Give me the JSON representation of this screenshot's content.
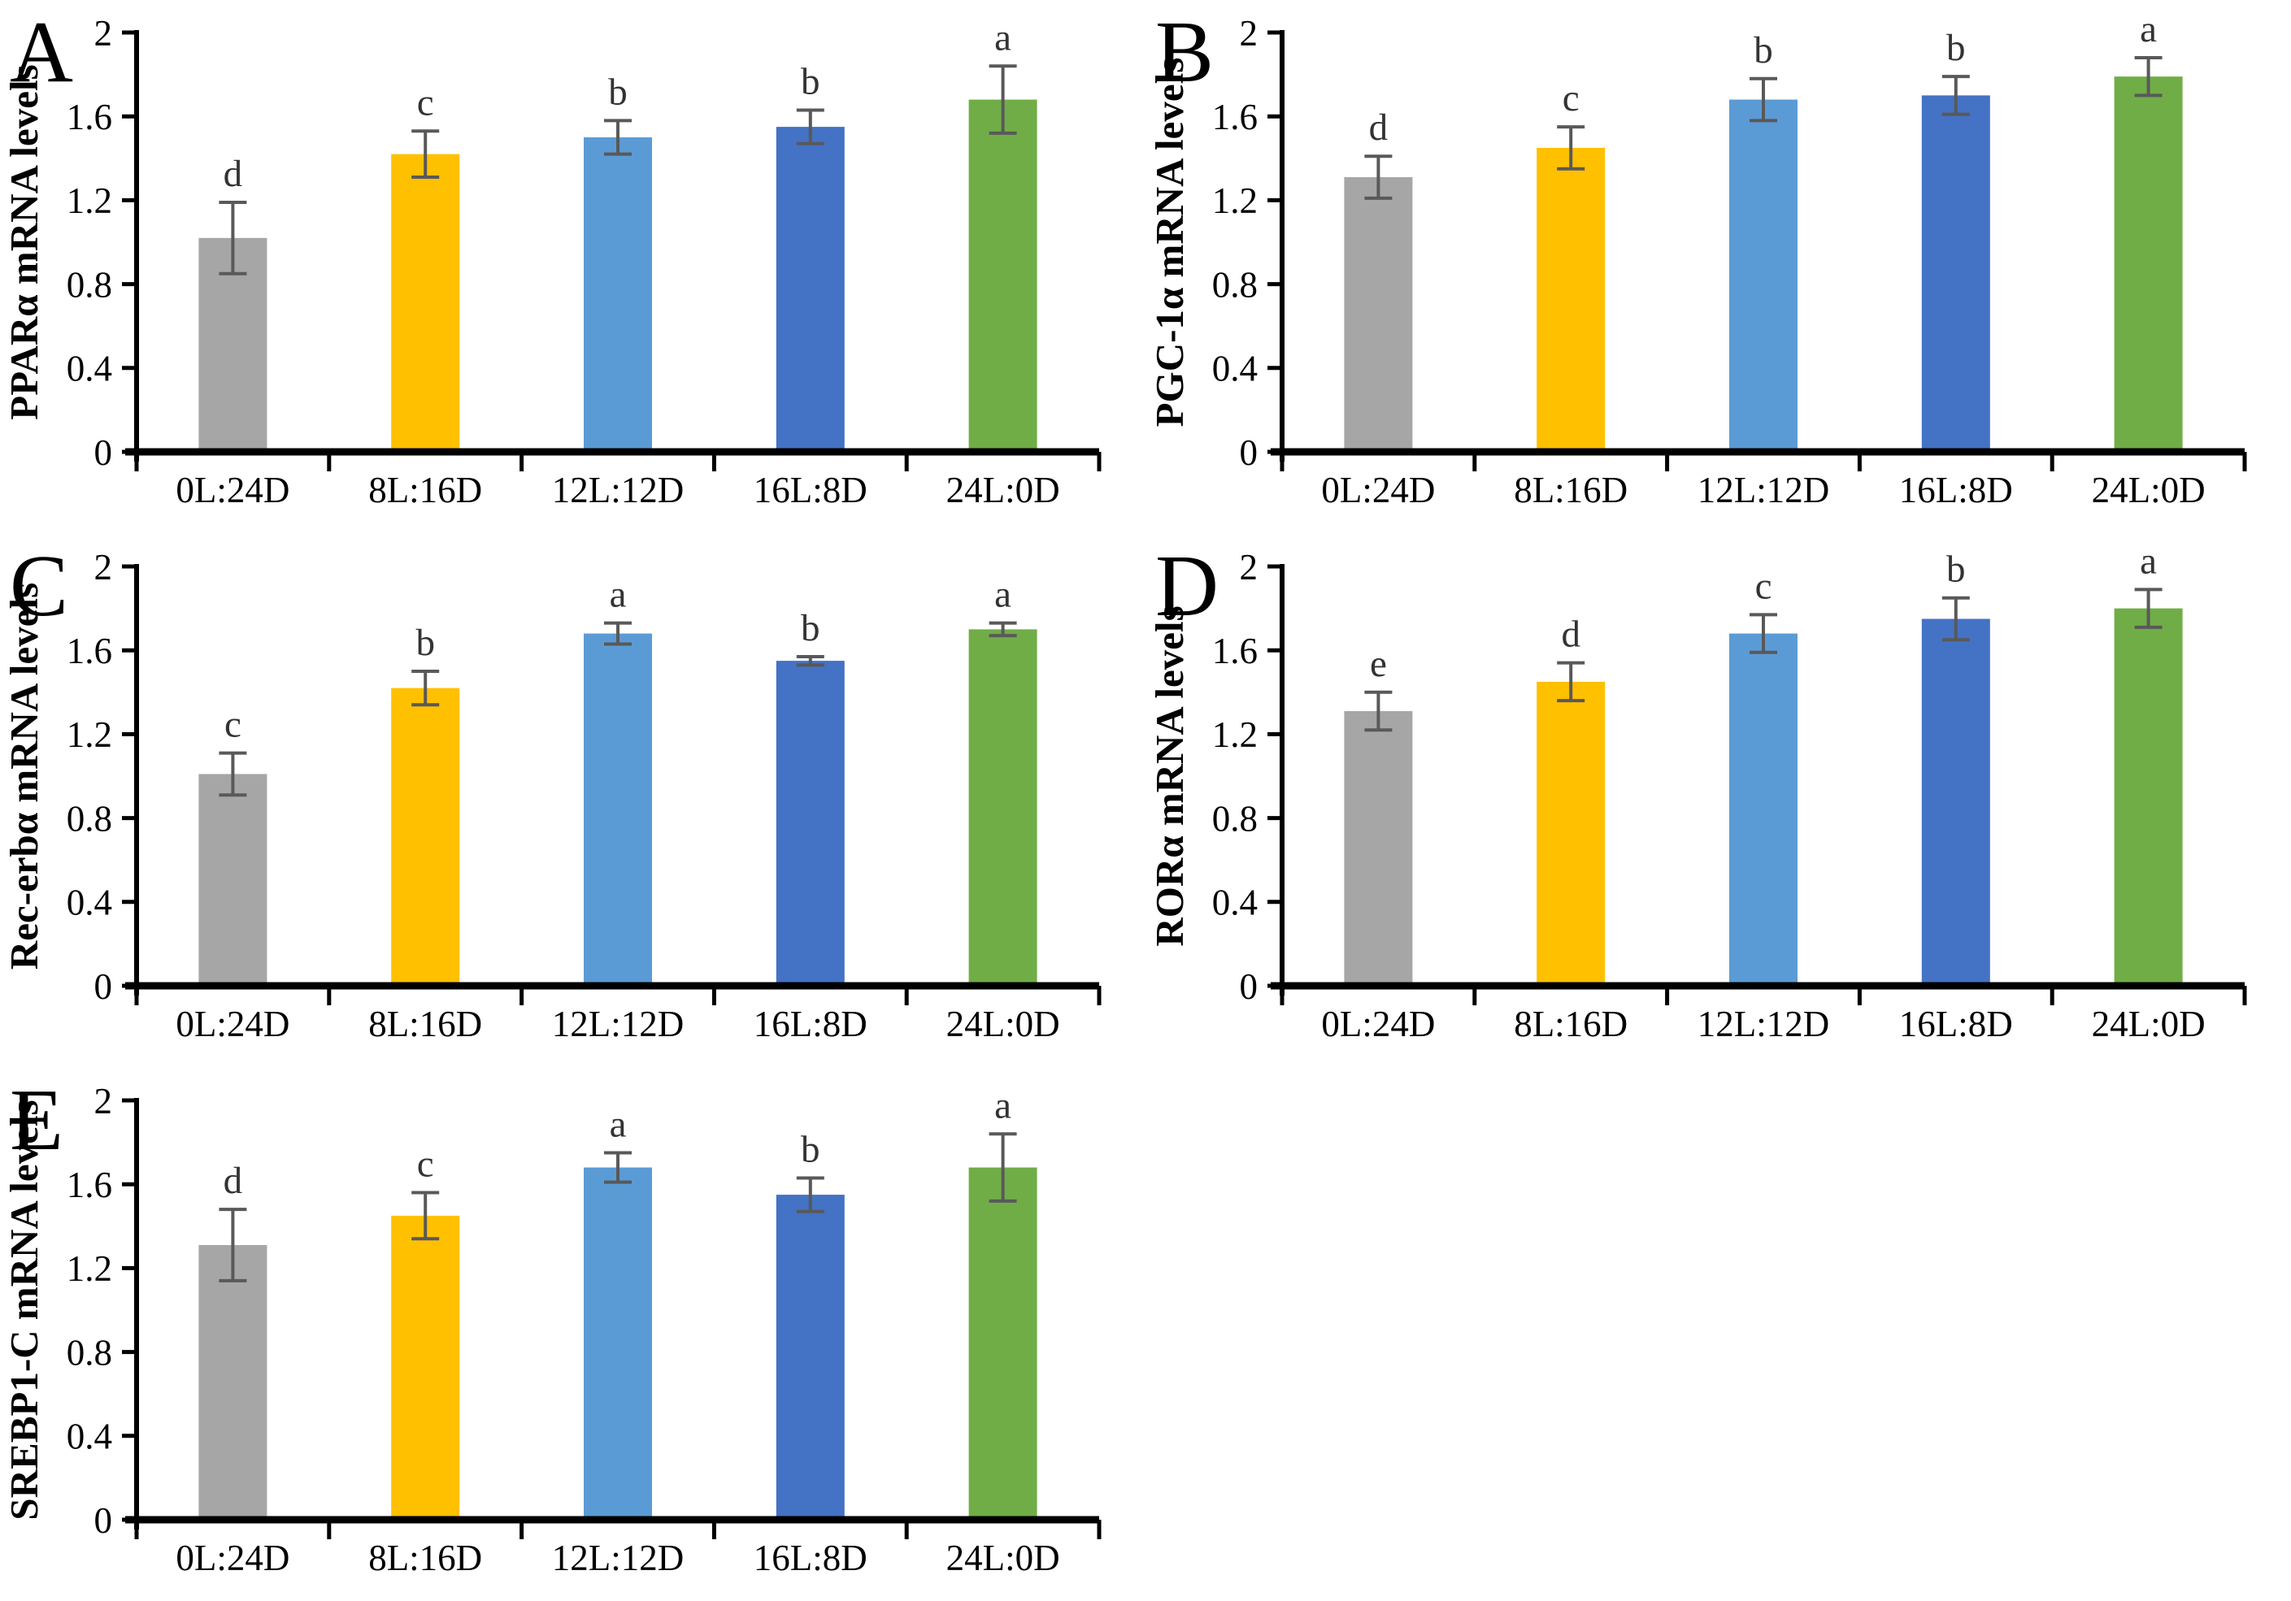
{
  "figure": {
    "description": "Five-panel bar chart figure of relative mRNA levels under different photoperiods",
    "background": "#ffffff"
  },
  "chart_data": [
    {
      "type": "bar",
      "panel_label": "A",
      "title": "",
      "xlabel": "",
      "ylabel": "PPARα mRNA levels",
      "categories": [
        "0L:24D",
        "8L:16D",
        "12L:12D",
        "16L:8D",
        "24L:0D"
      ],
      "values": [
        1.02,
        1.42,
        1.5,
        1.55,
        1.68
      ],
      "errors": [
        0.17,
        0.11,
        0.08,
        0.08,
        0.16
      ],
      "sig_letters": [
        "d",
        "c",
        "b",
        "b",
        "a"
      ],
      "bar_colors": [
        "#A6A6A6",
        "#FFC000",
        "#5B9BD5",
        "#4472C4",
        "#70AD47"
      ],
      "ylim": [
        0,
        2
      ],
      "yticks": [
        "0",
        "0.4",
        "0.8",
        "1.2",
        "1.6",
        "2"
      ],
      "grid": "off",
      "legend": "none",
      "error_color": "#595959",
      "axis_color": "#000000"
    },
    {
      "type": "bar",
      "panel_label": "B",
      "title": "",
      "xlabel": "",
      "ylabel": "PGC-1α mRNA levels",
      "categories": [
        "0L:24D",
        "8L:16D",
        "12L:12D",
        "16L:8D",
        "24L:0D"
      ],
      "values": [
        1.31,
        1.45,
        1.68,
        1.7,
        1.79
      ],
      "errors": [
        0.1,
        0.1,
        0.1,
        0.09,
        0.09
      ],
      "sig_letters": [
        "d",
        "c",
        "b",
        "b",
        "a"
      ],
      "bar_colors": [
        "#A6A6A6",
        "#FFC000",
        "#5B9BD5",
        "#4472C4",
        "#70AD47"
      ],
      "ylim": [
        0,
        2
      ],
      "yticks": [
        "0",
        "0.4",
        "0.8",
        "1.2",
        "1.6",
        "2"
      ],
      "grid": "off",
      "legend": "none",
      "error_color": "#595959",
      "axis_color": "#000000"
    },
    {
      "type": "bar",
      "panel_label": "C",
      "title": "",
      "xlabel": "",
      "ylabel": "Rec-erbα mRNA levels",
      "categories": [
        "0L:24D",
        "8L:16D",
        "12L:12D",
        "16L:8D",
        "24L:0D"
      ],
      "values": [
        1.01,
        1.42,
        1.68,
        1.55,
        1.7
      ],
      "errors": [
        0.1,
        0.08,
        0.05,
        0.02,
        0.03
      ],
      "sig_letters": [
        "c",
        "b",
        "a",
        "b",
        "a"
      ],
      "bar_colors": [
        "#A6A6A6",
        "#FFC000",
        "#5B9BD5",
        "#4472C4",
        "#70AD47"
      ],
      "ylim": [
        0,
        2
      ],
      "yticks": [
        "0",
        "0.4",
        "0.8",
        "1.2",
        "1.6",
        "2"
      ],
      "grid": "off",
      "legend": "none",
      "error_color": "#595959",
      "axis_color": "#000000"
    },
    {
      "type": "bar",
      "panel_label": "D",
      "title": "",
      "xlabel": "",
      "ylabel": "RORα  mRNA levels",
      "categories": [
        "0L:24D",
        "8L:16D",
        "12L:12D",
        "16L:8D",
        "24L:0D"
      ],
      "values": [
        1.31,
        1.45,
        1.68,
        1.75,
        1.8
      ],
      "errors": [
        0.09,
        0.09,
        0.09,
        0.1,
        0.09
      ],
      "sig_letters": [
        "e",
        "d",
        "c",
        "b",
        "a"
      ],
      "bar_colors": [
        "#A6A6A6",
        "#FFC000",
        "#5B9BD5",
        "#4472C4",
        "#70AD47"
      ],
      "ylim": [
        0,
        2
      ],
      "yticks": [
        "0",
        "0.4",
        "0.8",
        "1.2",
        "1.6",
        "2"
      ],
      "grid": "off",
      "legend": "none",
      "error_color": "#595959",
      "axis_color": "#000000"
    },
    {
      "type": "bar",
      "panel_label": "E",
      "title": "",
      "xlabel": "",
      "ylabel": "SREBP1-C  mRNA levels",
      "categories": [
        "0L:24D",
        "8L:16D",
        "12L:12D",
        "16L:8D",
        "24L:0D"
      ],
      "values": [
        1.31,
        1.45,
        1.68,
        1.55,
        1.68
      ],
      "errors": [
        0.17,
        0.11,
        0.07,
        0.08,
        0.16
      ],
      "sig_letters": [
        "d",
        "c",
        "a",
        "b",
        "a"
      ],
      "bar_colors": [
        "#A6A6A6",
        "#FFC000",
        "#5B9BD5",
        "#4472C4",
        "#70AD47"
      ],
      "ylim": [
        0,
        2
      ],
      "yticks": [
        "0",
        "0.4",
        "0.8",
        "1.2",
        "1.6",
        "2"
      ],
      "grid": "off",
      "legend": "none",
      "error_color": "#595959",
      "axis_color": "#000000"
    }
  ]
}
